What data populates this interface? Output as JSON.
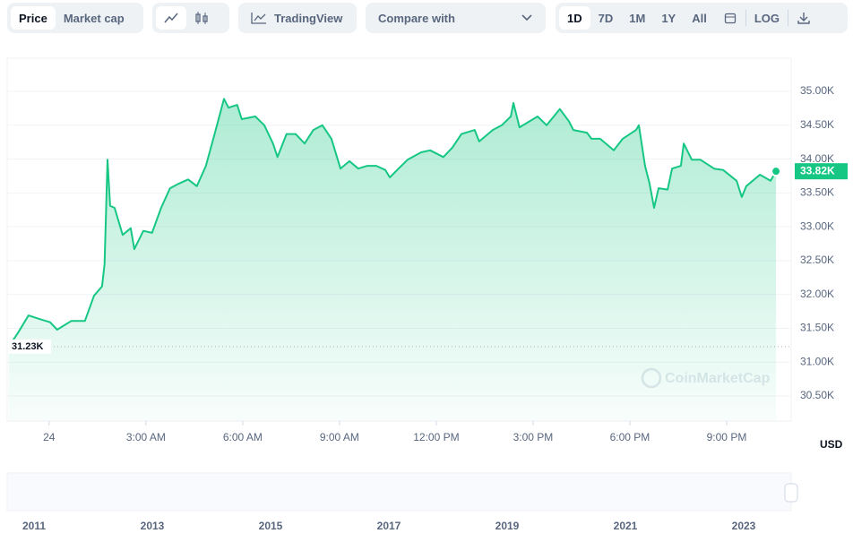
{
  "toolbar": {
    "views": [
      "Price",
      "Market cap"
    ],
    "selected_view": 0,
    "tradingview": "TradingView",
    "compare": "Compare with",
    "ranges": [
      "1D",
      "7D",
      "1M",
      "1Y",
      "All"
    ],
    "selected_range": 0,
    "log": "LOG"
  },
  "chart_data": {
    "type": "area",
    "color": "#16c784",
    "grid": true,
    "unit": "USD",
    "watermark": "CoinMarketCap",
    "x": [
      -1.25,
      -0.97,
      -0.64,
      -0.31,
      0.03,
      0.25,
      0.69,
      1.11,
      1.39,
      1.64,
      1.72,
      1.81,
      1.89,
      2.03,
      2.28,
      2.53,
      2.64,
      2.92,
      3.19,
      3.47,
      3.75,
      4.03,
      4.31,
      4.58,
      4.86,
      5.14,
      5.42,
      5.56,
      5.83,
      5.97,
      6.39,
      6.67,
      6.94,
      7.08,
      7.36,
      7.64,
      7.92,
      8.19,
      8.47,
      8.75,
      9.03,
      9.31,
      9.58,
      9.86,
      10.14,
      10.42,
      10.56,
      10.83,
      11.11,
      11.53,
      11.81,
      12.22,
      12.5,
      12.78,
      13.19,
      13.33,
      13.75,
      14.03,
      14.31,
      14.39,
      14.58,
      15.14,
      15.42,
      15.83,
      16.11,
      16.25,
      16.67,
      16.81,
      17.08,
      17.5,
      17.78,
      18.19,
      18.28,
      18.47,
      18.61,
      18.75,
      18.89,
      19.17,
      19.31,
      19.58,
      19.67,
      19.92,
      20.19,
      20.61,
      20.89,
      21.31,
      21.47,
      21.61,
      22.03,
      22.36,
      22.53
    ],
    "values": [
      31230,
      31430,
      31690,
      31640,
      31590,
      31480,
      31610,
      31610,
      31980,
      32120,
      32450,
      33990,
      33310,
      33280,
      32880,
      32980,
      32670,
      32940,
      32910,
      33280,
      33570,
      33640,
      33700,
      33600,
      33900,
      34390,
      34890,
      34760,
      34800,
      34590,
      34630,
      34500,
      34230,
      34030,
      34370,
      34370,
      34230,
      34430,
      34500,
      34300,
      33860,
      33970,
      33860,
      33900,
      33900,
      33840,
      33730,
      33860,
      33990,
      34100,
      34130,
      34030,
      34170,
      34370,
      34430,
      34260,
      34430,
      34500,
      34630,
      34830,
      34470,
      34630,
      34500,
      34740,
      34560,
      34430,
      34390,
      34300,
      34300,
      34130,
      34300,
      34430,
      34500,
      33900,
      33640,
      33280,
      33570,
      33550,
      33860,
      33900,
      34230,
      33990,
      33990,
      33860,
      33840,
      33680,
      33440,
      33600,
      33770,
      33680,
      33820
    ],
    "xlim": [
      -1.3,
      23
    ],
    "xticks": [
      {
        "value": 0,
        "label": "24"
      },
      {
        "value": 3,
        "label": "3:00 AM"
      },
      {
        "value": 6,
        "label": "6:00 AM"
      },
      {
        "value": 9,
        "label": "9:00 AM"
      },
      {
        "value": 12,
        "label": "12:00 PM"
      },
      {
        "value": 15,
        "label": "3:00 PM"
      },
      {
        "value": 18,
        "label": "6:00 PM"
      },
      {
        "value": 21,
        "label": "9:00 PM"
      }
    ],
    "ylim": [
      30130,
      35490
    ],
    "yticks": [
      {
        "value": 30500,
        "label": "30.50K"
      },
      {
        "value": 31000,
        "label": "31.00K"
      },
      {
        "value": 31500,
        "label": "31.50K"
      },
      {
        "value": 32000,
        "label": "32.00K"
      },
      {
        "value": 32500,
        "label": "32.50K"
      },
      {
        "value": 33000,
        "label": "33.00K"
      },
      {
        "value": 33500,
        "label": "33.50K"
      },
      {
        "value": 34000,
        "label": "34.00K"
      },
      {
        "value": 34500,
        "label": "34.50K"
      },
      {
        "value": 35000,
        "label": "35.00K"
      }
    ],
    "annotations": [
      {
        "value": 31230,
        "label": "31.23K"
      },
      {
        "value": 33820,
        "label": "33.82K"
      }
    ],
    "navigator_labels": [
      "2011",
      "2013",
      "2015",
      "2017",
      "2019",
      "2021",
      "2023"
    ]
  }
}
